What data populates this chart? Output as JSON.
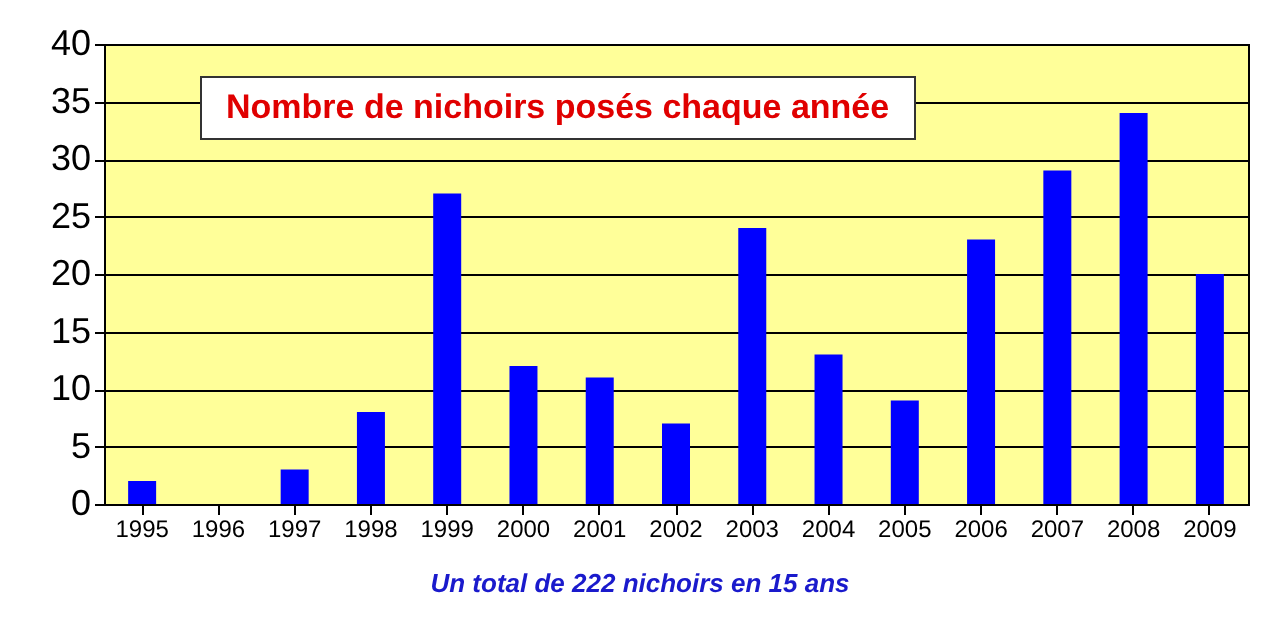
{
  "chart_data": {
    "type": "bar",
    "title": "Nombre de nichoirs posés chaque année",
    "categories": [
      "1995",
      "1996",
      "1997",
      "1998",
      "1999",
      "2000",
      "2001",
      "2002",
      "2003",
      "2004",
      "2005",
      "2006",
      "2007",
      "2008",
      "2009"
    ],
    "values": [
      2,
      0,
      3,
      8,
      27,
      12,
      11,
      7,
      24,
      13,
      9,
      23,
      29,
      34,
      20
    ],
    "color": "#0000ff",
    "ylim": [
      0,
      40
    ],
    "yticks": [
      0,
      5,
      10,
      15,
      20,
      25,
      30,
      35,
      40
    ],
    "grid": "y",
    "annotations": [
      "Un total de 222 nichoirs en 15 ans"
    ]
  }
}
